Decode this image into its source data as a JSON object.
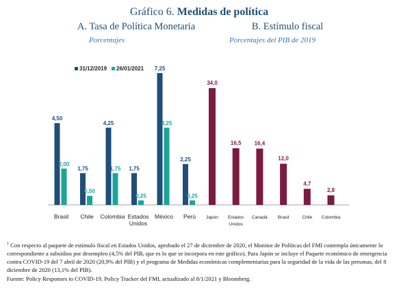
{
  "title": {
    "prefix": "Gráfico 6.",
    "bold": "Medidas de política"
  },
  "colors": {
    "series_2019": "#1f4e79",
    "series_2021": "#1ba59a",
    "fiscal": "#7b1c3f",
    "axis": "#888888"
  },
  "chart_data": [
    {
      "type": "bar",
      "title": "A.  Tasa de Política Monetaria",
      "subtitle": "Porcentajes",
      "categories": [
        [
          "Brasil"
        ],
        [
          "Chile"
        ],
        [
          "Colombia"
        ],
        [
          "Estados",
          "Unidos"
        ],
        [
          "México"
        ],
        [
          "Perú"
        ]
      ],
      "series": [
        {
          "name": "31/12/2019",
          "values": [
            4.5,
            1.75,
            4.25,
            1.75,
            7.25,
            2.25
          ],
          "labels": [
            "4,50",
            "1,75",
            "4,25",
            "1,75",
            "7,25",
            "2,25"
          ]
        },
        {
          "name": "26/01/2021",
          "values": [
            2.0,
            0.5,
            1.75,
            0.25,
            4.25,
            0.25
          ],
          "labels": [
            "2,00",
            "0,50",
            "1,75",
            "0,25",
            "4,25",
            "0,25"
          ]
        }
      ],
      "ylim": [
        0,
        7.25
      ],
      "legend": "top-left"
    },
    {
      "type": "bar",
      "title": "B.      Estímulo fiscal",
      "subtitle": "Porcentajes del PIB de 2019",
      "categories": [
        [
          "Japón"
        ],
        [
          "Estados",
          "Unidos"
        ],
        [
          "Canadá"
        ],
        [
          "Brasil"
        ],
        [
          "Chile"
        ],
        [
          "Colombia"
        ]
      ],
      "series": [
        {
          "values": [
            34.0,
            16.5,
            16.4,
            12.0,
            4.7,
            2.8
          ],
          "labels": [
            "34,0",
            "16,5",
            "16,4",
            "12,0",
            "4,7",
            "2,8"
          ]
        }
      ],
      "ylim": [
        0,
        34.0
      ]
    }
  ],
  "notes": {
    "footnote_mark": "1",
    "footnote": " Con respecto al paquete de estímulo fiscal en Estados Unidos, aprobado el 27 de diciembre de 2020, el Monitor de Políticas del FMI contempla únicamente lo correspondiente a subsidios por desempleo (4,5% del PIB, que es lo que se incorpora en este gráfico). Para Japón se incluye el Paquete económico de emergencia contra COVID-19 del 7 abril de 2020 (20,9% del PIB) y el programa de Medidas económicas complementarias para la seguridad de la vida de las personas, del 8 diciembre de 2020 (13,1% del PIB).",
    "source": "Fuente: Policy Responses to COVID-19, Policy Tracker del FMI, actualizado al 8/1/2021 y Bloomberg."
  }
}
